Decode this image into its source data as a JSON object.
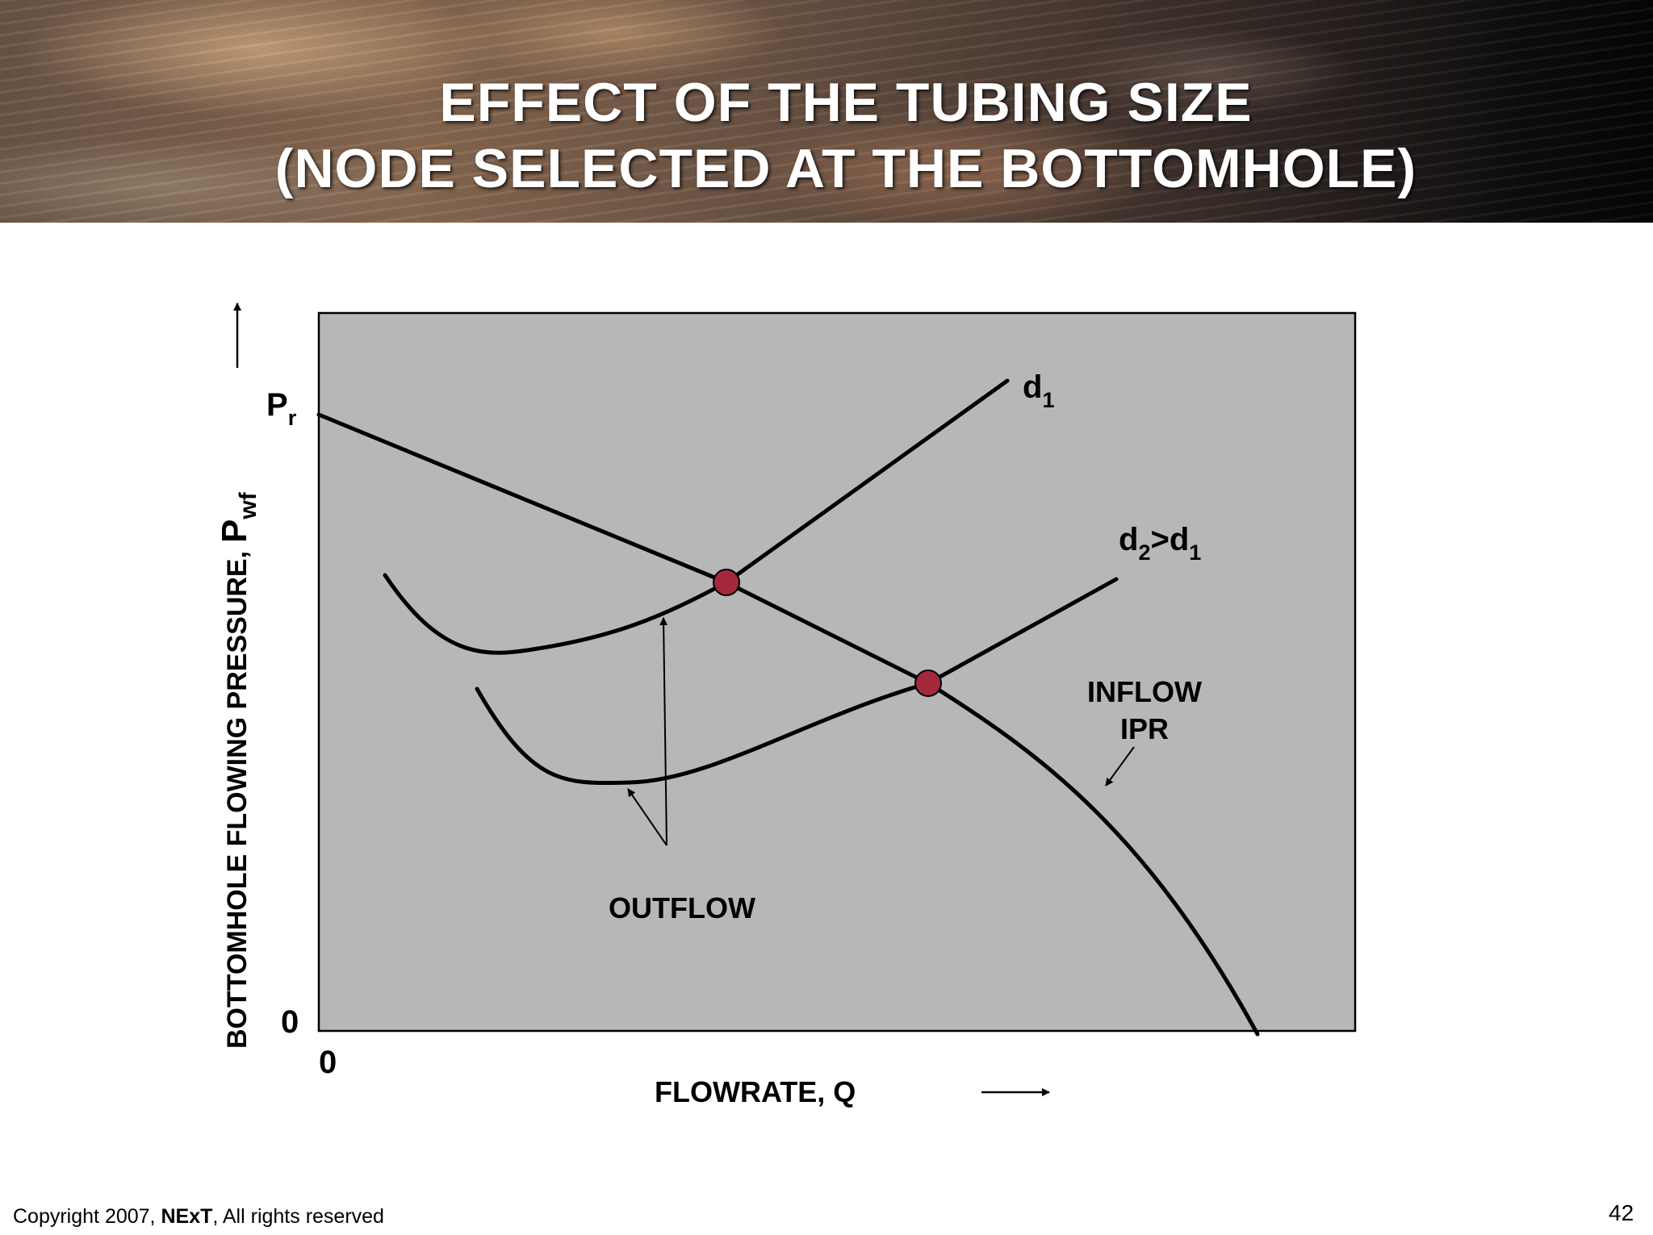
{
  "slide": {
    "title_line1": "EFFECT OF THE TUBING SIZE",
    "title_line2": "(NODE SELECTED AT THE BOTTOMHOLE)",
    "page_number": "42",
    "copyright_prefix": "Copyright 2007,",
    "copyright_brand": "NExT",
    "copyright_suffix": ", All rights reserved"
  },
  "diagram": {
    "y_axis_label": "BOTTOMHOLE FLOWING PRESSURE,",
    "y_axis_symbol": "P",
    "y_axis_symbol_sub": "wf",
    "x_axis_label": "FLOWRATE, Q",
    "pr_label": "P",
    "pr_sub": "r",
    "y_zero": "0",
    "x_zero": "0",
    "curve_d1_label": "d",
    "curve_d1_sub": "1",
    "curve_d2_label_a": "d",
    "curve_d2_sub_a": "2",
    "curve_d2_label_b": ">d",
    "curve_d2_sub_b": "1",
    "inflow_label_1": "INFLOW",
    "inflow_label_2": "IPR",
    "outflow_label": "OUTFLOW",
    "plot_background": "#b7b7b8",
    "intersection_color": "#a3283c"
  }
}
